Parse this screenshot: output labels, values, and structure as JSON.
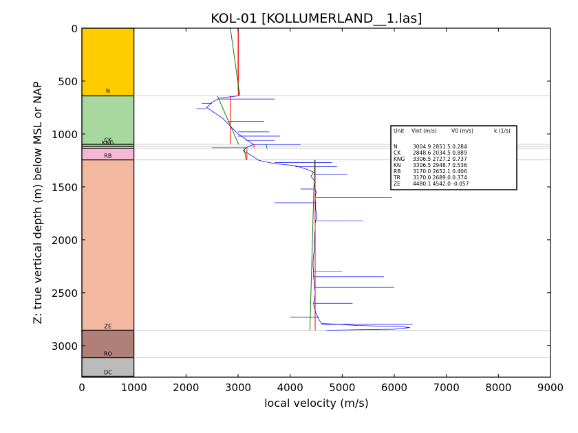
{
  "chart_data": {
    "type": "line",
    "title": "KOL-01 [KOLLUMERLAND__1.las]",
    "xlabel": "local velocity (m/s)",
    "ylabel": "Z: true vertical depth (m) below MSL or NAP",
    "xlim": [
      0,
      9000
    ],
    "ylim": [
      3300,
      0
    ],
    "y_inverted": true,
    "xticks": [
      0,
      1000,
      2000,
      3000,
      4000,
      5000,
      6000,
      7000,
      8000,
      9000
    ],
    "yticks": [
      0,
      500,
      1000,
      1500,
      2000,
      2500,
      3000
    ],
    "grid": false,
    "units": [
      {
        "name": "N",
        "top": 0,
        "base": 640,
        "color": "#ffcc00"
      },
      {
        "name": "CK",
        "top": 640,
        "base": 1098,
        "color": "#a8d8a0"
      },
      {
        "name": "KNG",
        "top": 1098,
        "base": 1118,
        "color": "#a8d8a0"
      },
      {
        "name": "KN",
        "top": 1118,
        "base": 1135,
        "color": "#c8e6a8"
      },
      {
        "name": "RB",
        "top": 1135,
        "base": 1245,
        "color": "#f4b8d4"
      },
      {
        "name": "ZE",
        "top": 1245,
        "base": 2855,
        "color": "#f2b8a0"
      },
      {
        "name": "RO",
        "top": 2855,
        "base": 3115,
        "color": "#b08078"
      },
      {
        "name": "DC",
        "top": 3115,
        "base": 3290,
        "color": "#bbbbbb"
      }
    ],
    "unit_labels": [
      {
        "name": "N",
        "depth": 610
      },
      {
        "name": "CK",
        "depth": 1075
      },
      {
        "name": "KNG",
        "depth": 1100
      },
      {
        "name": "RB",
        "depth": 1225
      },
      {
        "name": "ZE",
        "depth": 2835
      },
      {
        "name": "RO",
        "depth": 3095
      },
      {
        "name": "DC",
        "depth": 3270
      }
    ],
    "boundaries": [
      640,
      1098,
      1118,
      1135,
      1245,
      2855,
      3115,
      3290
    ],
    "interval_velocity": [
      {
        "unit": "N",
        "top": 0,
        "base": 640,
        "vint": 3004.9
      },
      {
        "unit": "CK",
        "top": 640,
        "base": 1098,
        "vint": 2848.6
      },
      {
        "unit": "KNG",
        "top": 1098,
        "base": 1118,
        "vint": 3306.5
      },
      {
        "unit": "KN",
        "top": 1118,
        "base": 1135,
        "vint": 3306.5
      },
      {
        "unit": "RB",
        "top": 1135,
        "base": 1245,
        "vint": 3170.0
      },
      {
        "unit": "ZE",
        "top": 1245,
        "base": 2855,
        "vint": 4480.1
      }
    ],
    "v0k_model": [
      {
        "unit": "N",
        "top": 0,
        "base": 640,
        "v0": 2851.5,
        "k": 0.284
      },
      {
        "unit": "CK",
        "top": 640,
        "base": 1098,
        "v0": 2034.5,
        "k": 0.889
      },
      {
        "unit": "KNG",
        "top": 1098,
        "base": 1118,
        "v0": 2727.2,
        "k": 0.737
      },
      {
        "unit": "KN",
        "top": 1118,
        "base": 1135,
        "v0": 2948.7,
        "k": 0.536
      },
      {
        "unit": "RB",
        "top": 1135,
        "base": 1245,
        "v0": 2652.1,
        "k": 0.406
      },
      {
        "unit": "ZE",
        "top": 1245,
        "base": 2855,
        "v0": 4542.0,
        "k": -0.057
      }
    ],
    "log_profile": [
      [
        0,
        3000
      ],
      [
        580,
        3000
      ],
      [
        600,
        3020
      ],
      [
        640,
        3000
      ],
      [
        660,
        2650
      ],
      [
        700,
        2500
      ],
      [
        750,
        2400
      ],
      [
        800,
        2550
      ],
      [
        850,
        2700
      ],
      [
        900,
        2800
      ],
      [
        950,
        2900
      ],
      [
        1000,
        3000
      ],
      [
        1050,
        3150
      ],
      [
        1100,
        3300
      ],
      [
        1130,
        3150
      ],
      [
        1160,
        3100
      ],
      [
        1200,
        3250
      ],
      [
        1250,
        3400
      ],
      [
        1280,
        3700
      ],
      [
        1300,
        4100
      ],
      [
        1330,
        4300
      ],
      [
        1360,
        4450
      ],
      [
        1400,
        4400
      ],
      [
        1450,
        4480
      ],
      [
        1500,
        4470
      ],
      [
        1550,
        4500
      ],
      [
        1600,
        4480
      ],
      [
        1650,
        4490
      ],
      [
        1700,
        4490
      ],
      [
        1750,
        4500
      ],
      [
        1800,
        4500
      ],
      [
        1850,
        4480
      ],
      [
        1900,
        4480
      ],
      [
        1950,
        4470
      ],
      [
        2000,
        4470
      ],
      [
        2050,
        4460
      ],
      [
        2100,
        4460
      ],
      [
        2150,
        4450
      ],
      [
        2200,
        4440
      ],
      [
        2250,
        4440
      ],
      [
        2300,
        4450
      ],
      [
        2350,
        4450
      ],
      [
        2400,
        4460
      ],
      [
        2450,
        4470
      ],
      [
        2500,
        4480
      ],
      [
        2550,
        4470
      ],
      [
        2600,
        4450
      ],
      [
        2650,
        4470
      ],
      [
        2700,
        4500
      ],
      [
        2750,
        4550
      ],
      [
        2790,
        4600
      ],
      [
        2810,
        5300
      ],
      [
        2820,
        6100
      ],
      [
        2830,
        6300
      ],
      [
        2845,
        6000
      ],
      [
        2855,
        4700
      ]
    ],
    "log_spikes": [
      [
        670,
        3700
      ],
      [
        710,
        2300
      ],
      [
        760,
        2200
      ],
      [
        880,
        3500
      ],
      [
        980,
        3600
      ],
      [
        1020,
        3800
      ],
      [
        1060,
        3700
      ],
      [
        1100,
        4200
      ],
      [
        1130,
        2500
      ],
      [
        1270,
        4800
      ],
      [
        1310,
        4900
      ],
      [
        1380,
        5100
      ],
      [
        1520,
        4200
      ],
      [
        1600,
        5950
      ],
      [
        1650,
        3700
      ],
      [
        1820,
        5400
      ],
      [
        2300,
        5000
      ],
      [
        2350,
        5800
      ],
      [
        2450,
        6000
      ],
      [
        2600,
        5200
      ],
      [
        2730,
        4000
      ],
      [
        2800,
        6350
      ]
    ],
    "legend": {
      "placement": "center-right",
      "header": [
        "Unit",
        "Vint (m/s)",
        "V0 (m/s)",
        "k (1/s)"
      ],
      "rows": [
        [
          "N",
          "3004.9",
          "2851.5",
          "0.284"
        ],
        [
          "CK",
          "2848.6",
          "2034.5",
          "0.889"
        ],
        [
          "KNG",
          "3306.5",
          "2727.2",
          "0.737"
        ],
        [
          "KN",
          "3306.5",
          "2948.7",
          "0.536"
        ],
        [
          "RB",
          "3170.0",
          "2652.1",
          "0.406"
        ],
        [
          "TR",
          "3170.0",
          "2689.0",
          "0.374"
        ],
        [
          "ZE",
          "4480.1",
          "4542.0",
          "-0.057"
        ]
      ]
    },
    "colors": {
      "log": "#0000ff",
      "interval": "#ff0000",
      "model": "#008000",
      "boundary": "#cccccc"
    }
  }
}
